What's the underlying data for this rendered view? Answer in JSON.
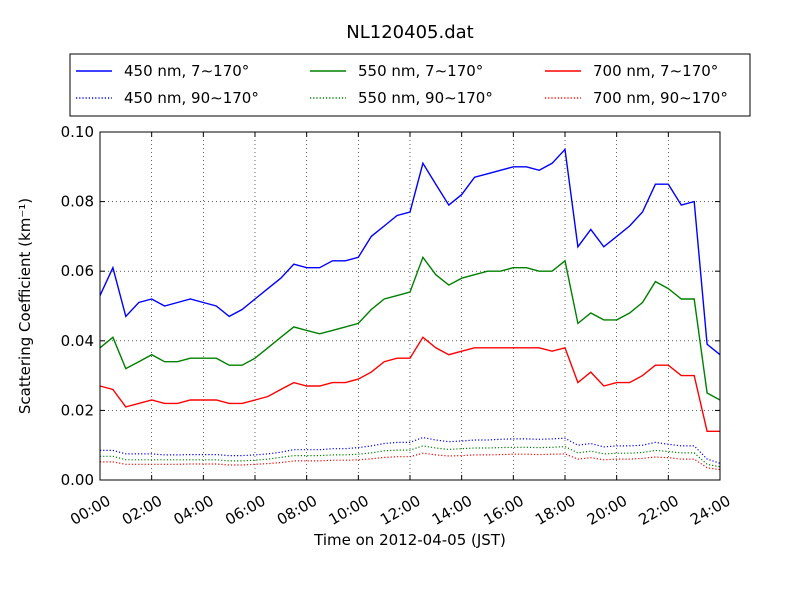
{
  "chart_data": {
    "type": "line",
    "title": "NL120405.dat",
    "xlabel": "Time on 2012-04-05 (JST)",
    "ylabel": "Scattering Coefficient (km⁻¹)",
    "xlim": [
      "00:00",
      "24:00"
    ],
    "ylim": [
      0,
      0.1
    ],
    "x_ticks": [
      "00:00",
      "02:00",
      "04:00",
      "06:00",
      "08:00",
      "10:00",
      "12:00",
      "14:00",
      "16:00",
      "18:00",
      "20:00",
      "22:00",
      "24:00"
    ],
    "y_ticks": [
      "0.00",
      "0.02",
      "0.04",
      "0.06",
      "0.08",
      "0.10"
    ],
    "grid": true,
    "legend_position": "top, above plot",
    "x_hours": [
      0,
      0.5,
      1,
      1.5,
      2,
      2.5,
      3,
      3.5,
      4,
      4.5,
      5,
      5.5,
      6,
      6.5,
      7,
      7.5,
      8,
      8.5,
      9,
      9.5,
      10,
      10.5,
      11,
      11.5,
      12,
      12.5,
      13,
      13.5,
      14,
      14.5,
      15,
      15.5,
      16,
      16.5,
      17,
      17.5,
      18,
      18.5,
      19,
      19.5,
      20,
      20.5,
      21,
      21.5,
      22,
      22.5,
      23,
      23.5,
      24
    ],
    "series": [
      {
        "name": "450 nm, 7∼170°",
        "color": "#0000ff",
        "style": "solid",
        "values": [
          0.053,
          0.061,
          0.047,
          0.051,
          0.052,
          0.05,
          0.051,
          0.052,
          0.051,
          0.05,
          0.047,
          0.049,
          0.052,
          0.055,
          0.058,
          0.062,
          0.061,
          0.061,
          0.063,
          0.063,
          0.064,
          0.07,
          0.073,
          0.076,
          0.077,
          0.091,
          0.085,
          0.079,
          0.082,
          0.087,
          0.088,
          0.089,
          0.09,
          0.09,
          0.089,
          0.091,
          0.095,
          0.067,
          0.072,
          0.067,
          0.07,
          0.073,
          0.077,
          0.085,
          0.085,
          0.079,
          0.08,
          0.039,
          0.036
        ]
      },
      {
        "name": "550 nm, 7∼170°",
        "color": "#008000",
        "style": "solid",
        "values": [
          0.038,
          0.041,
          0.032,
          0.034,
          0.036,
          0.034,
          0.034,
          0.035,
          0.035,
          0.035,
          0.033,
          0.033,
          0.035,
          0.038,
          0.041,
          0.044,
          0.043,
          0.042,
          0.043,
          0.044,
          0.045,
          0.049,
          0.052,
          0.053,
          0.054,
          0.064,
          0.059,
          0.056,
          0.058,
          0.059,
          0.06,
          0.06,
          0.061,
          0.061,
          0.06,
          0.06,
          0.063,
          0.045,
          0.048,
          0.046,
          0.046,
          0.048,
          0.051,
          0.057,
          0.055,
          0.052,
          0.052,
          0.025,
          0.023
        ]
      },
      {
        "name": "700 nm, 7∼170°",
        "color": "#ff0000",
        "style": "solid",
        "values": [
          0.027,
          0.026,
          0.021,
          0.022,
          0.023,
          0.022,
          0.022,
          0.023,
          0.023,
          0.023,
          0.022,
          0.022,
          0.023,
          0.024,
          0.026,
          0.028,
          0.027,
          0.027,
          0.028,
          0.028,
          0.029,
          0.031,
          0.034,
          0.035,
          0.035,
          0.041,
          0.038,
          0.036,
          0.037,
          0.038,
          0.038,
          0.038,
          0.038,
          0.038,
          0.038,
          0.037,
          0.038,
          0.028,
          0.031,
          0.027,
          0.028,
          0.028,
          0.03,
          0.033,
          0.033,
          0.03,
          0.03,
          0.014,
          0.014
        ]
      },
      {
        "name": "450 nm, 90∼170°",
        "color": "#0000ff",
        "style": "dotted",
        "values": [
          0.0085,
          0.0085,
          0.0075,
          0.0075,
          0.0075,
          0.0072,
          0.0072,
          0.0073,
          0.0073,
          0.0073,
          0.007,
          0.007,
          0.0072,
          0.0075,
          0.008,
          0.0087,
          0.0087,
          0.0087,
          0.009,
          0.009,
          0.0093,
          0.0098,
          0.0105,
          0.0108,
          0.0108,
          0.0122,
          0.0115,
          0.011,
          0.0112,
          0.0115,
          0.0115,
          0.0117,
          0.0118,
          0.0118,
          0.0117,
          0.0118,
          0.012,
          0.01,
          0.0105,
          0.0095,
          0.0098,
          0.0098,
          0.01,
          0.0108,
          0.0103,
          0.0098,
          0.0098,
          0.006,
          0.0048
        ]
      },
      {
        "name": "550 nm, 90∼170°",
        "color": "#008000",
        "style": "dotted",
        "values": [
          0.0068,
          0.0068,
          0.0058,
          0.0058,
          0.0058,
          0.0058,
          0.0058,
          0.0058,
          0.0058,
          0.0058,
          0.0055,
          0.0055,
          0.0057,
          0.006,
          0.0065,
          0.007,
          0.007,
          0.007,
          0.0072,
          0.0072,
          0.0074,
          0.0078,
          0.0084,
          0.0086,
          0.0086,
          0.0098,
          0.0092,
          0.0088,
          0.009,
          0.0092,
          0.0092,
          0.0093,
          0.0094,
          0.0094,
          0.0093,
          0.0094,
          0.0096,
          0.0078,
          0.0083,
          0.0075,
          0.0077,
          0.0077,
          0.0079,
          0.0085,
          0.0082,
          0.0078,
          0.0078,
          0.0045,
          0.0038
        ]
      },
      {
        "name": "700 nm, 90∼170°",
        "color": "#ff0000",
        "style": "dotted",
        "values": [
          0.0052,
          0.0052,
          0.0045,
          0.0045,
          0.0045,
          0.0045,
          0.0045,
          0.0046,
          0.0046,
          0.0046,
          0.0043,
          0.0043,
          0.0045,
          0.0047,
          0.005,
          0.0055,
          0.0055,
          0.0055,
          0.0057,
          0.0057,
          0.0058,
          0.0061,
          0.0065,
          0.0067,
          0.0067,
          0.0077,
          0.0072,
          0.0069,
          0.007,
          0.0072,
          0.0072,
          0.0073,
          0.0074,
          0.0074,
          0.0073,
          0.0074,
          0.0075,
          0.006,
          0.0064,
          0.0058,
          0.006,
          0.006,
          0.0062,
          0.0066,
          0.0064,
          0.006,
          0.006,
          0.0035,
          0.003
        ]
      }
    ]
  }
}
